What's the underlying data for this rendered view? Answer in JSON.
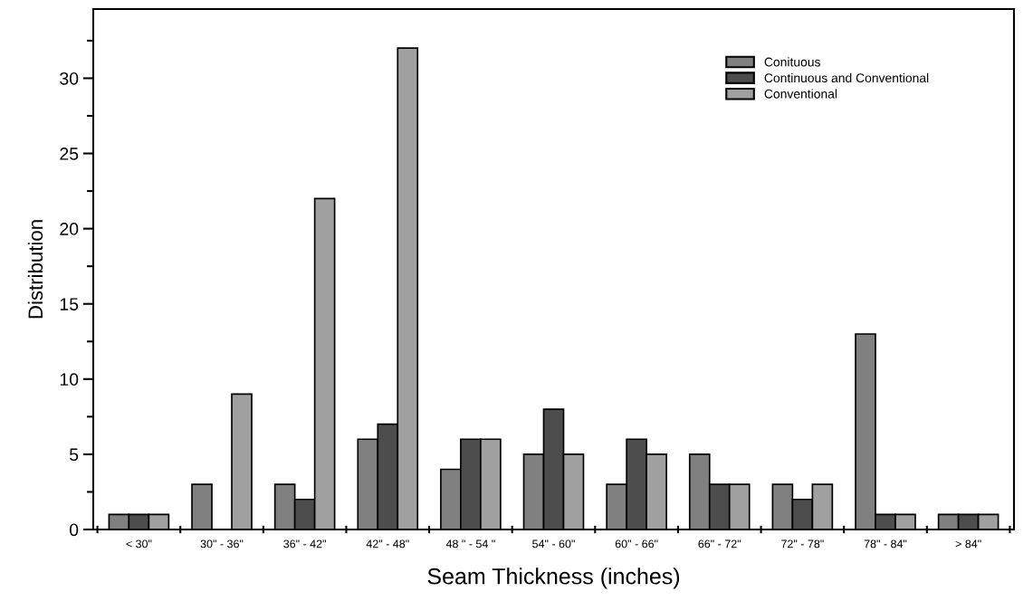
{
  "chart_data": {
    "type": "bar",
    "xlabel": "Seam Thickness (inches)",
    "ylabel": "Distribution",
    "categories": [
      "< 30\"",
      "30\" - 36\"",
      "36\" - 42\"",
      "42\" - 48\"",
      "48 \" - 54 \"",
      "54\" - 60\"",
      "60\" - 66\"",
      "66\" - 72\"",
      "72\" - 78\"",
      "78\" - 84\"",
      "> 84\""
    ],
    "series": [
      {
        "name": "Conituous",
        "color": "#808080",
        "values": [
          1,
          3,
          3,
          6,
          4,
          5,
          3,
          5,
          3,
          13,
          1
        ]
      },
      {
        "name": "Continuous and Conventional",
        "color": "#4d4d4d",
        "values": [
          1,
          0,
          2,
          7,
          6,
          8,
          6,
          3,
          2,
          1,
          1
        ]
      },
      {
        "name": "Conventional",
        "color": "#a0a0a0",
        "values": [
          1,
          9,
          22,
          32,
          6,
          5,
          5,
          3,
          3,
          1,
          1
        ]
      }
    ],
    "ylim": [
      0,
      34.6
    ],
    "yticks": [
      0,
      5,
      10,
      15,
      20,
      25,
      30
    ],
    "grid": false,
    "legend": "top right"
  }
}
